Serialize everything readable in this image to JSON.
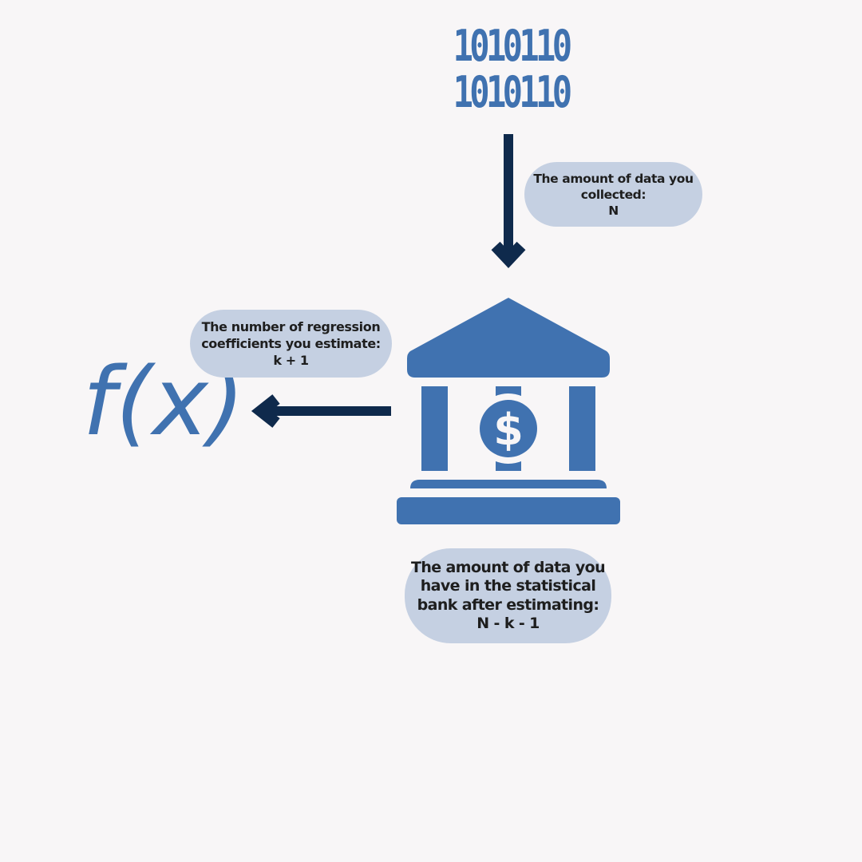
{
  "binary": {
    "line1": "1010110",
    "line2": "1010110"
  },
  "function_label": "f(x)",
  "bank_symbol": "$",
  "collected": {
    "line1": "The amount of data you",
    "line2": "collected:",
    "line3": "N"
  },
  "coefficients": {
    "line1": "The number of regression",
    "line2": "coefficients you estimate:",
    "line3": "k + 1"
  },
  "remaining": {
    "line1": "The amount of data you",
    "line2": "have in the statistical",
    "line3": "bank after estimating:",
    "line4": "N - k - 1"
  },
  "colors": {
    "background": "#f8f6f7",
    "icon_blue": "#4072b0",
    "arrow_navy": "#0f2a4c",
    "bubble_fill": "#c5d0e2",
    "text_dark": "#1e1e1e"
  }
}
